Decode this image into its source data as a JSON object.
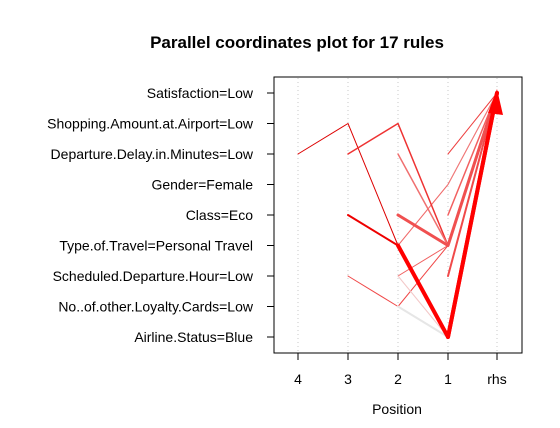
{
  "chart_data": {
    "type": "parallel-coordinates",
    "title": "Parallel coordinates plot for 17 rules",
    "xlabel": "Position",
    "x_ticks": [
      "4",
      "3",
      "2",
      "1",
      "rhs"
    ],
    "y_ticks": [
      "Satisfaction=Low",
      "Shopping.Amount.at.Airport=Low",
      "Departure.Delay.in.Minutes=Low",
      "Gender=Female",
      "Class=Eco",
      "Type.of.Travel=Personal Travel",
      "Scheduled.Departure.Hour=Low",
      "No..of.other.Loyalty.Cards=Low",
      "Airline.Status=Blue"
    ],
    "vertical_grid": "dotted",
    "rules": [
      {
        "path": [
          [
            4,
            "Departure.Delay.in.Minutes=Low"
          ],
          [
            3,
            "Shopping.Amount.at.Airport=Low"
          ],
          [
            2,
            "Type.of.Travel=Personal Travel"
          ],
          [
            1,
            "Airline.Status=Blue"
          ],
          [
            "rhs",
            "Satisfaction=Low"
          ]
        ],
        "color": "#dd0000",
        "width": 1
      },
      {
        "path": [
          [
            3,
            "Departure.Delay.in.Minutes=Low"
          ],
          [
            2,
            "Shopping.Amount.at.Airport=Low"
          ],
          [
            1,
            "Type.of.Travel=Personal Travel"
          ],
          [
            "rhs",
            "Satisfaction=Low"
          ]
        ],
        "color": "#ee3333",
        "width": 1.5
      },
      {
        "path": [
          [
            3,
            "Class=Eco"
          ],
          [
            2,
            "Type.of.Travel=Personal Travel"
          ],
          [
            1,
            "Airline.Status=Blue"
          ],
          [
            "rhs",
            "Satisfaction=Low"
          ]
        ],
        "color": "#ee0000",
        "width": 2
      },
      {
        "path": [
          [
            3,
            "Scheduled.Departure.Hour=Low"
          ],
          [
            2,
            "No..of.other.Loyalty.Cards=Low"
          ],
          [
            1,
            "Type.of.Travel=Personal Travel"
          ],
          [
            "rhs",
            "Satisfaction=Low"
          ]
        ],
        "color": "#f04848",
        "width": 1
      },
      {
        "path": [
          [
            2,
            "Class=Eco"
          ],
          [
            1,
            "Type.of.Travel=Personal Travel"
          ],
          [
            "rhs",
            "Satisfaction=Low"
          ]
        ],
        "color": "#f05050",
        "width": 3
      },
      {
        "path": [
          [
            2,
            "Type.of.Travel=Personal Travel"
          ],
          [
            1,
            "Airline.Status=Blue"
          ],
          [
            "rhs",
            "Satisfaction=Low"
          ]
        ],
        "color": "#ff0000",
        "width": 4
      },
      {
        "path": [
          [
            2,
            "Departure.Delay.in.Minutes=Low"
          ],
          [
            1,
            "Type.of.Travel=Personal Travel"
          ]
        ],
        "color": "#f07070",
        "width": 1.5
      },
      {
        "path": [
          [
            2,
            "Scheduled.Departure.Hour=Low"
          ],
          [
            1,
            "Type.of.Travel=Personal Travel"
          ]
        ],
        "color": "#f06060",
        "width": 1
      },
      {
        "path": [
          [
            2,
            "Type.of.Travel=Personal Travel"
          ],
          [
            1,
            "Gender=Female"
          ],
          [
            "rhs",
            "Satisfaction=Low"
          ]
        ],
        "color": "#f06a6a",
        "width": 1
      },
      {
        "path": [
          [
            2,
            "Scheduled.Departure.Hour=Low"
          ],
          [
            1,
            "Airline.Status=Blue"
          ]
        ],
        "color": "#f3c8c8",
        "width": 1
      },
      {
        "path": [
          [
            2,
            "No..of.other.Loyalty.Cards=Low"
          ],
          [
            1,
            "Airline.Status=Blue"
          ]
        ],
        "color": "#e6e6e6",
        "width": 2
      },
      {
        "path": [
          [
            1,
            "Type.of.Travel=Personal Travel"
          ],
          [
            "rhs",
            "Satisfaction=Low"
          ]
        ],
        "color": "#f07878",
        "width": 2
      },
      {
        "path": [
          [
            1,
            "Scheduled.Departure.Hour=Low"
          ],
          [
            "rhs",
            "Satisfaction=Low"
          ]
        ],
        "color": "#f04a4a",
        "width": 2
      },
      {
        "path": [
          [
            1,
            "Airline.Status=Blue"
          ],
          [
            "rhs",
            "Satisfaction=Low"
          ]
        ],
        "color": "#ff0000",
        "width": 4
      },
      {
        "path": [
          [
            1,
            "Gender=Female"
          ],
          [
            "rhs",
            "Satisfaction=Low"
          ]
        ],
        "color": "#f07b7b",
        "width": 1
      },
      {
        "path": [
          [
            1,
            "Class=Eco"
          ],
          [
            "rhs",
            "Satisfaction=Low"
          ]
        ],
        "color": "#f26060",
        "width": 1.5
      },
      {
        "path": [
          [
            1,
            "Departure.Delay.in.Minutes=Low"
          ],
          [
            "rhs",
            "Satisfaction=Low"
          ]
        ],
        "color": "#ee4040",
        "width": 1
      }
    ]
  }
}
